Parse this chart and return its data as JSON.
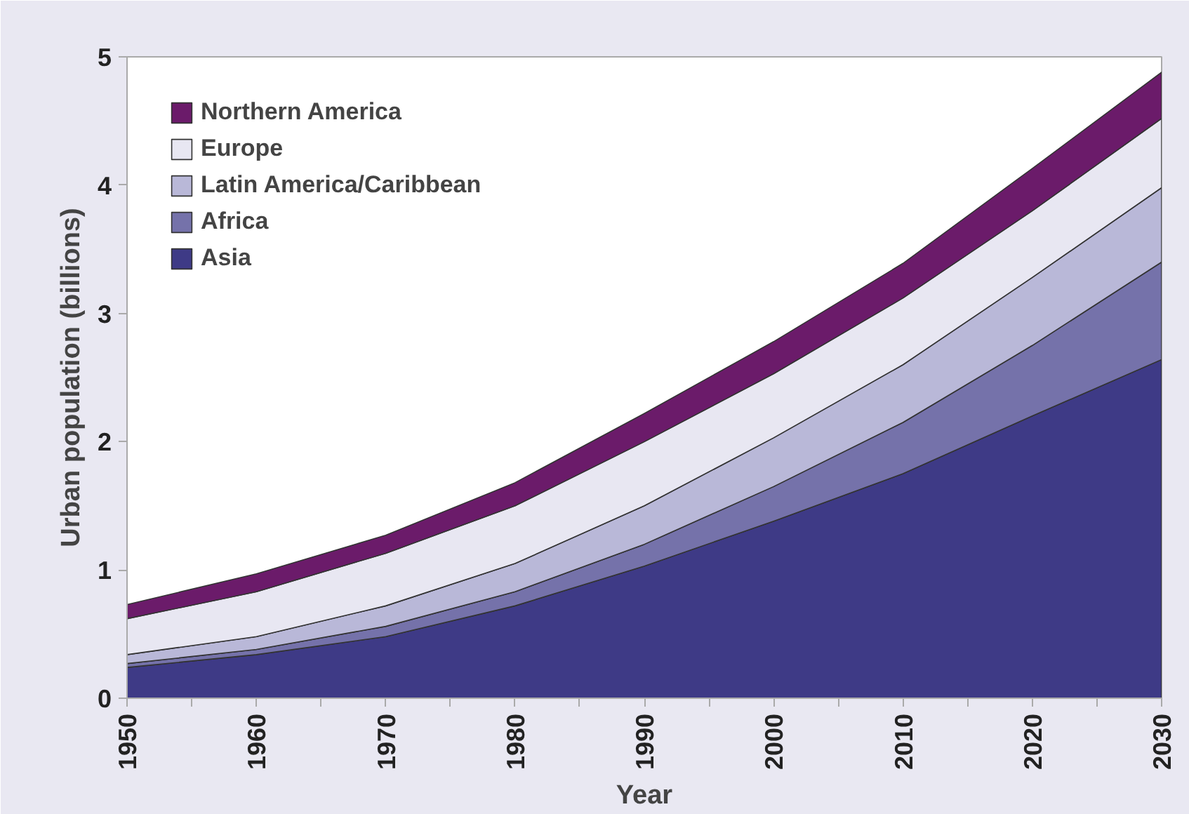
{
  "chart_data": {
    "type": "area",
    "stacked": true,
    "xlabel": "Year",
    "ylabel": "Urban population (billions)",
    "x": [
      1950,
      1960,
      1970,
      1980,
      1990,
      2000,
      2010,
      2020,
      2030
    ],
    "series": [
      {
        "name": "Asia",
        "color": "#3e3a86",
        "values": [
          0.24,
          0.34,
          0.48,
          0.72,
          1.03,
          1.38,
          1.75,
          2.2,
          2.64
        ]
      },
      {
        "name": "Africa",
        "color": "#7572aa",
        "values": [
          0.03,
          0.04,
          0.08,
          0.11,
          0.17,
          0.27,
          0.4,
          0.55,
          0.76
        ]
      },
      {
        "name": "Latin America/Caribbean",
        "color": "#b9b8d8",
        "values": [
          0.07,
          0.1,
          0.16,
          0.22,
          0.3,
          0.38,
          0.45,
          0.53,
          0.58
        ]
      },
      {
        "name": "Europe",
        "color": "#e8e7f2",
        "values": [
          0.28,
          0.35,
          0.41,
          0.45,
          0.5,
          0.5,
          0.52,
          0.52,
          0.54
        ]
      },
      {
        "name": "Northern America",
        "color": "#6b1b6a",
        "values": [
          0.11,
          0.14,
          0.14,
          0.18,
          0.22,
          0.25,
          0.27,
          0.33,
          0.36
        ]
      }
    ],
    "xlim": [
      1950,
      2030
    ],
    "ylim": [
      0,
      5
    ],
    "xticks": [
      1950,
      {
        "value": 1955,
        "label": null
      },
      1960,
      {
        "value": 1965,
        "label": null
      },
      1970,
      {
        "value": 1975,
        "label": null
      },
      1980,
      {
        "value": 1985,
        "label": null
      },
      1990,
      {
        "value": 1995,
        "label": null
      },
      2000,
      {
        "value": 2005,
        "label": null
      },
      2010,
      {
        "value": 2015,
        "label": null
      },
      2020,
      {
        "value": 2025,
        "label": null
      },
      2030
    ],
    "yticks": [
      0,
      1,
      2,
      3,
      4,
      5
    ],
    "grid": false,
    "legend": "top left"
  }
}
